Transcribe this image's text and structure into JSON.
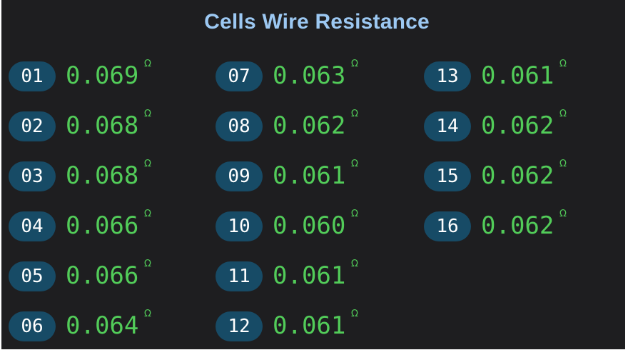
{
  "title": "Cells Wire Resistance",
  "unit_symbol": "Ω",
  "colors": {
    "background": "#1e1e20",
    "title": "#9cc8f2",
    "badge_bg": "#174b66",
    "badge_text": "#ffffff",
    "value": "#52cc59"
  },
  "cells": [
    {
      "id": "01",
      "value": "0.069"
    },
    {
      "id": "02",
      "value": "0.068"
    },
    {
      "id": "03",
      "value": "0.068"
    },
    {
      "id": "04",
      "value": "0.066"
    },
    {
      "id": "05",
      "value": "0.066"
    },
    {
      "id": "06",
      "value": "0.064"
    },
    {
      "id": "07",
      "value": "0.063"
    },
    {
      "id": "08",
      "value": "0.062"
    },
    {
      "id": "09",
      "value": "0.061"
    },
    {
      "id": "10",
      "value": "0.060"
    },
    {
      "id": "11",
      "value": "0.061"
    },
    {
      "id": "12",
      "value": "0.061"
    },
    {
      "id": "13",
      "value": "0.061"
    },
    {
      "id": "14",
      "value": "0.062"
    },
    {
      "id": "15",
      "value": "0.062"
    },
    {
      "id": "16",
      "value": "0.062"
    }
  ]
}
